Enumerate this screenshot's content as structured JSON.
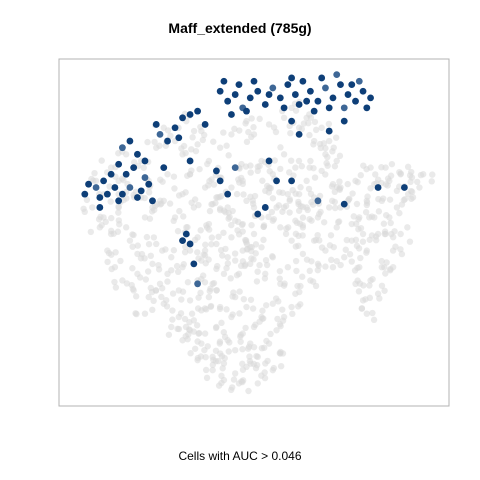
{
  "chart_data": {
    "type": "scatter",
    "title": "Maff_extended (785g)",
    "xlabel": "Cells with AUC > 0.046",
    "ylabel": "",
    "grid": false,
    "legend": "none",
    "colors": {
      "background_cells": "#d9d9d9",
      "selected_cells": "#0e3f78",
      "selected_cells_light": "#3e6796"
    },
    "series": [
      {
        "role": "background",
        "points": [
          [
            0.12,
            0.7
          ],
          [
            0.14,
            0.66
          ],
          [
            0.17,
            0.64
          ],
          [
            0.2,
            0.61
          ],
          [
            0.23,
            0.58
          ],
          [
            0.26,
            0.6
          ],
          [
            0.29,
            0.55
          ],
          [
            0.32,
            0.52
          ],
          [
            0.35,
            0.49
          ],
          [
            0.38,
            0.53
          ],
          [
            0.1,
            0.55
          ],
          [
            0.12,
            0.5
          ],
          [
            0.11,
            0.45
          ],
          [
            0.13,
            0.4
          ],
          [
            0.15,
            0.36
          ],
          [
            0.18,
            0.33
          ],
          [
            0.22,
            0.31
          ],
          [
            0.25,
            0.35
          ],
          [
            0.19,
            0.44
          ],
          [
            0.24,
            0.47
          ],
          [
            0.28,
            0.43
          ],
          [
            0.31,
            0.4
          ],
          [
            0.27,
            0.38
          ],
          [
            0.16,
            0.52
          ],
          [
            0.21,
            0.55
          ],
          [
            0.33,
            0.45
          ],
          [
            0.36,
            0.42
          ],
          [
            0.3,
            0.33
          ],
          [
            0.17,
            0.48
          ],
          [
            0.14,
            0.58
          ],
          [
            0.4,
            0.61
          ],
          [
            0.42,
            0.57
          ],
          [
            0.45,
            0.54
          ],
          [
            0.44,
            0.49
          ],
          [
            0.47,
            0.45
          ],
          [
            0.5,
            0.5
          ],
          [
            0.52,
            0.46
          ],
          [
            0.49,
            0.41
          ],
          [
            0.46,
            0.38
          ],
          [
            0.43,
            0.43
          ],
          [
            0.41,
            0.67
          ],
          [
            0.38,
            0.72
          ],
          [
            0.35,
            0.77
          ],
          [
            0.31,
            0.74
          ],
          [
            0.33,
            0.68
          ],
          [
            0.37,
            0.64
          ],
          [
            0.39,
            0.59
          ],
          [
            0.48,
            0.6
          ],
          [
            0.44,
            0.64
          ],
          [
            0.46,
            0.7
          ],
          [
            0.52,
            0.72
          ],
          [
            0.55,
            0.68
          ],
          [
            0.58,
            0.74
          ],
          [
            0.61,
            0.7
          ],
          [
            0.64,
            0.66
          ],
          [
            0.66,
            0.61
          ],
          [
            0.62,
            0.57
          ],
          [
            0.59,
            0.62
          ],
          [
            0.56,
            0.58
          ],
          [
            0.53,
            0.63
          ],
          [
            0.57,
            0.52
          ],
          [
            0.6,
            0.48
          ],
          [
            0.63,
            0.44
          ],
          [
            0.59,
            0.4
          ],
          [
            0.55,
            0.43
          ],
          [
            0.53,
            0.38
          ],
          [
            0.57,
            0.35
          ],
          [
            0.61,
            0.32
          ],
          [
            0.65,
            0.36
          ],
          [
            0.67,
            0.41
          ],
          [
            0.5,
            0.8
          ],
          [
            0.54,
            0.83
          ],
          [
            0.58,
            0.85
          ],
          [
            0.62,
            0.82
          ],
          [
            0.66,
            0.78
          ],
          [
            0.69,
            0.74
          ],
          [
            0.68,
            0.69
          ],
          [
            0.71,
            0.65
          ],
          [
            0.7,
            0.58
          ],
          [
            0.72,
            0.52
          ],
          [
            0.78,
            0.55
          ],
          [
            0.8,
            0.6
          ],
          [
            0.82,
            0.65
          ],
          [
            0.84,
            0.6
          ],
          [
            0.86,
            0.55
          ],
          [
            0.83,
            0.5
          ],
          [
            0.8,
            0.45
          ],
          [
            0.78,
            0.4
          ],
          [
            0.81,
            0.36
          ],
          [
            0.84,
            0.4
          ],
          [
            0.87,
            0.45
          ],
          [
            0.89,
            0.5
          ],
          [
            0.76,
            0.48
          ],
          [
            0.74,
            0.43
          ],
          [
            0.77,
            0.35
          ],
          [
            0.83,
            0.32
          ],
          [
            0.79,
            0.3
          ],
          [
            0.75,
            0.6
          ],
          [
            0.73,
            0.64
          ],
          [
            0.77,
            0.66
          ],
          [
            0.86,
            0.66
          ],
          [
            0.89,
            0.68
          ],
          [
            0.92,
            0.67
          ],
          [
            0.94,
            0.64
          ],
          [
            0.91,
            0.62
          ],
          [
            0.88,
            0.63
          ],
          [
            0.95,
            0.68
          ],
          [
            0.85,
            0.7
          ],
          [
            0.81,
            0.7
          ],
          [
            0.88,
            0.58
          ],
          [
            0.3,
            0.25
          ],
          [
            0.33,
            0.21
          ],
          [
            0.36,
            0.17
          ],
          [
            0.39,
            0.13
          ],
          [
            0.42,
            0.11
          ],
          [
            0.45,
            0.08
          ],
          [
            0.48,
            0.1
          ],
          [
            0.51,
            0.13
          ],
          [
            0.54,
            0.17
          ],
          [
            0.56,
            0.21
          ],
          [
            0.52,
            0.25
          ],
          [
            0.48,
            0.28
          ],
          [
            0.44,
            0.25
          ],
          [
            0.4,
            0.22
          ],
          [
            0.36,
            0.27
          ],
          [
            0.33,
            0.3
          ],
          [
            0.38,
            0.31
          ],
          [
            0.43,
            0.18
          ],
          [
            0.47,
            0.2
          ],
          [
            0.5,
            0.22
          ],
          [
            0.41,
            0.14
          ],
          [
            0.45,
            0.15
          ],
          [
            0.49,
            0.17
          ],
          [
            0.53,
            0.11
          ],
          [
            0.46,
            0.05
          ],
          [
            0.42,
            0.06
          ],
          [
            0.39,
            0.09
          ],
          [
            0.35,
            0.12
          ],
          [
            0.58,
            0.25
          ],
          [
            0.55,
            0.29
          ],
          [
            0.6,
            0.28
          ],
          [
            0.45,
            0.31
          ],
          [
            0.41,
            0.28
          ],
          [
            0.37,
            0.2
          ],
          [
            0.31,
            0.18
          ],
          [
            0.28,
            0.22
          ],
          [
            0.34,
            0.24
          ],
          [
            0.51,
            0.05
          ],
          [
            0.55,
            0.09
          ],
          [
            0.57,
            0.14
          ],
          [
            0.26,
            0.82
          ],
          [
            0.29,
            0.78
          ],
          [
            0.24,
            0.76
          ],
          [
            0.2,
            0.72
          ],
          [
            0.16,
            0.74
          ],
          [
            0.14,
            0.62
          ],
          [
            0.08,
            0.66
          ],
          [
            0.1,
            0.62
          ],
          [
            0.22,
            0.66
          ],
          [
            0.27,
            0.68
          ],
          [
            0.44,
            0.8
          ],
          [
            0.48,
            0.84
          ],
          [
            0.41,
            0.76
          ],
          [
            0.36,
            0.81
          ],
          [
            0.32,
            0.84
          ],
          [
            0.6,
            0.88
          ],
          [
            0.64,
            0.85
          ],
          [
            0.68,
            0.82
          ],
          [
            0.7,
            0.78
          ],
          [
            0.72,
            0.72
          ],
          [
            0.09,
            0.52
          ],
          [
            0.07,
            0.58
          ],
          [
            0.19,
            0.38
          ],
          [
            0.23,
            0.41
          ],
          [
            0.26,
            0.29
          ],
          [
            0.21,
            0.26
          ],
          [
            0.63,
            0.52
          ],
          [
            0.66,
            0.48
          ],
          [
            0.69,
            0.45
          ],
          [
            0.71,
            0.4
          ],
          [
            0.62,
            0.62
          ],
          [
            0.65,
            0.72
          ],
          [
            0.67,
            0.55
          ],
          [
            0.73,
            0.58
          ],
          [
            0.76,
            0.53
          ],
          [
            0.79,
            0.5
          ],
          [
            0.82,
            0.55
          ],
          [
            0.85,
            0.5
          ],
          [
            0.87,
            0.4
          ],
          [
            0.8,
            0.26
          ],
          [
            0.47,
            0.66
          ],
          [
            0.51,
            0.69
          ],
          [
            0.54,
            0.64
          ],
          [
            0.5,
            0.58
          ],
          [
            0.47,
            0.53
          ],
          [
            0.43,
            0.58
          ],
          [
            0.4,
            0.47
          ],
          [
            0.37,
            0.45
          ],
          [
            0.34,
            0.58
          ],
          [
            0.31,
            0.62
          ],
          [
            0.58,
            0.58
          ],
          [
            0.61,
            0.54
          ],
          [
            0.64,
            0.58
          ],
          [
            0.55,
            0.54
          ],
          [
            0.52,
            0.55
          ],
          [
            0.49,
            0.46
          ],
          [
            0.45,
            0.42
          ],
          [
            0.42,
            0.38
          ],
          [
            0.39,
            0.35
          ],
          [
            0.35,
            0.36
          ]
        ]
      },
      {
        "role": "selected",
        "points": [
          [
            0.41,
            0.93
          ],
          [
            0.43,
            0.9
          ],
          [
            0.45,
            0.92
          ],
          [
            0.47,
            0.88
          ],
          [
            0.44,
            0.86
          ],
          [
            0.46,
            0.95
          ],
          [
            0.49,
            0.91
          ],
          [
            0.51,
            0.93
          ],
          [
            0.53,
            0.89
          ],
          [
            0.48,
            0.87
          ],
          [
            0.55,
            0.94
          ],
          [
            0.57,
            0.91
          ],
          [
            0.59,
            0.95
          ],
          [
            0.61,
            0.92
          ],
          [
            0.63,
            0.96
          ],
          [
            0.65,
            0.93
          ],
          [
            0.67,
            0.9
          ],
          [
            0.69,
            0.94
          ],
          [
            0.71,
            0.91
          ],
          [
            0.73,
            0.95
          ],
          [
            0.75,
            0.92
          ],
          [
            0.77,
            0.9
          ],
          [
            0.79,
            0.93
          ],
          [
            0.81,
            0.91
          ],
          [
            0.74,
            0.88
          ],
          [
            0.7,
            0.88
          ],
          [
            0.66,
            0.87
          ],
          [
            0.62,
            0.89
          ],
          [
            0.58,
            0.88
          ],
          [
            0.64,
            0.9
          ],
          [
            0.68,
            0.97
          ],
          [
            0.72,
            0.98
          ],
          [
            0.76,
            0.95
          ],
          [
            0.6,
            0.97
          ],
          [
            0.54,
            0.92
          ],
          [
            0.5,
            0.96
          ],
          [
            0.42,
            0.96
          ],
          [
            0.8,
            0.88
          ],
          [
            0.78,
            0.96
          ],
          [
            0.74,
            0.84
          ],
          [
            0.7,
            0.81
          ],
          [
            0.6,
            0.84
          ],
          [
            0.62,
            0.8
          ],
          [
            0.29,
            0.82
          ],
          [
            0.31,
            0.85
          ],
          [
            0.25,
            0.8
          ],
          [
            0.27,
            0.78
          ],
          [
            0.24,
            0.83
          ],
          [
            0.33,
            0.86
          ],
          [
            0.3,
            0.79
          ],
          [
            0.17,
            0.78
          ],
          [
            0.19,
            0.74
          ],
          [
            0.15,
            0.76
          ],
          [
            0.18,
            0.7
          ],
          [
            0.21,
            0.72
          ],
          [
            0.14,
            0.71
          ],
          [
            0.16,
            0.68
          ],
          [
            0.12,
            0.68
          ],
          [
            0.1,
            0.66
          ],
          [
            0.08,
            0.64
          ],
          [
            0.06,
            0.65
          ],
          [
            0.05,
            0.62
          ],
          [
            0.09,
            0.61
          ],
          [
            0.11,
            0.62
          ],
          [
            0.13,
            0.64
          ],
          [
            0.15,
            0.62
          ],
          [
            0.17,
            0.64
          ],
          [
            0.19,
            0.61
          ],
          [
            0.2,
            0.63
          ],
          [
            0.22,
            0.65
          ],
          [
            0.14,
            0.6
          ],
          [
            0.09,
            0.58
          ],
          [
            0.23,
            0.6
          ],
          [
            0.21,
            0.67
          ],
          [
            0.26,
            0.7
          ],
          [
            0.33,
            0.72
          ],
          [
            0.37,
            0.83
          ],
          [
            0.35,
            0.87
          ],
          [
            0.4,
            0.69
          ],
          [
            0.41,
            0.66
          ],
          [
            0.45,
            0.7
          ],
          [
            0.43,
            0.62
          ],
          [
            0.54,
            0.72
          ],
          [
            0.56,
            0.66
          ],
          [
            0.6,
            0.66
          ],
          [
            0.53,
            0.58
          ],
          [
            0.51,
            0.56
          ],
          [
            0.67,
            0.6
          ],
          [
            0.74,
            0.59
          ],
          [
            0.83,
            0.64
          ],
          [
            0.9,
            0.64
          ],
          [
            0.32,
            0.5
          ],
          [
            0.33,
            0.47
          ],
          [
            0.34,
            0.41
          ],
          [
            0.35,
            0.35
          ],
          [
            0.31,
            0.48
          ]
        ]
      }
    ]
  }
}
